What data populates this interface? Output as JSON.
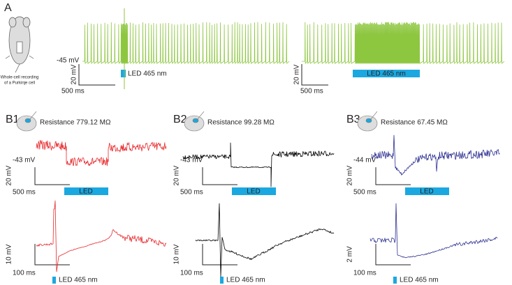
{
  "panel_a": {
    "label": "A",
    "caption": [
      "Whole-cell recording",
      "of a Purkinje cell"
    ],
    "baseline": "-45 mV",
    "scale_left": {
      "y": "20 mV",
      "x": "500 ms"
    },
    "led_left": "LED 465 nm",
    "scale_right": {
      "y": "20 mV",
      "x": "500 ms"
    },
    "led_right": "LED 465 nm"
  },
  "panels_b": [
    {
      "label": "B1",
      "resistance": "Resistance 779.12 MΩ",
      "baseline": "-43 mV",
      "scale_top": {
        "y": "20 mV",
        "x": "500 ms"
      },
      "led_top": "LED",
      "scale_bottom": {
        "y": "10 mV",
        "x": "100 ms"
      },
      "led_bottom": "LED 465 nm"
    },
    {
      "label": "B2",
      "resistance": "Resistance 99.28 MΩ",
      "baseline": "-43 mV",
      "scale_top": {
        "y": "20 mV",
        "x": "500 ms"
      },
      "led_top": "LED",
      "scale_bottom": {
        "y": "10 mV",
        "x": "100 ms"
      },
      "led_bottom": "LED 465 nm"
    },
    {
      "label": "B3",
      "resistance": "Resistance 67.45 MΩ",
      "baseline": "-44 mV",
      "scale_top": {
        "y": "20 mV",
        "x": "500 ms"
      },
      "led_top": "LED",
      "scale_bottom": {
        "y": "2 mV",
        "x": "100 ms"
      },
      "led_bottom": "LED 465 nm"
    }
  ]
}
